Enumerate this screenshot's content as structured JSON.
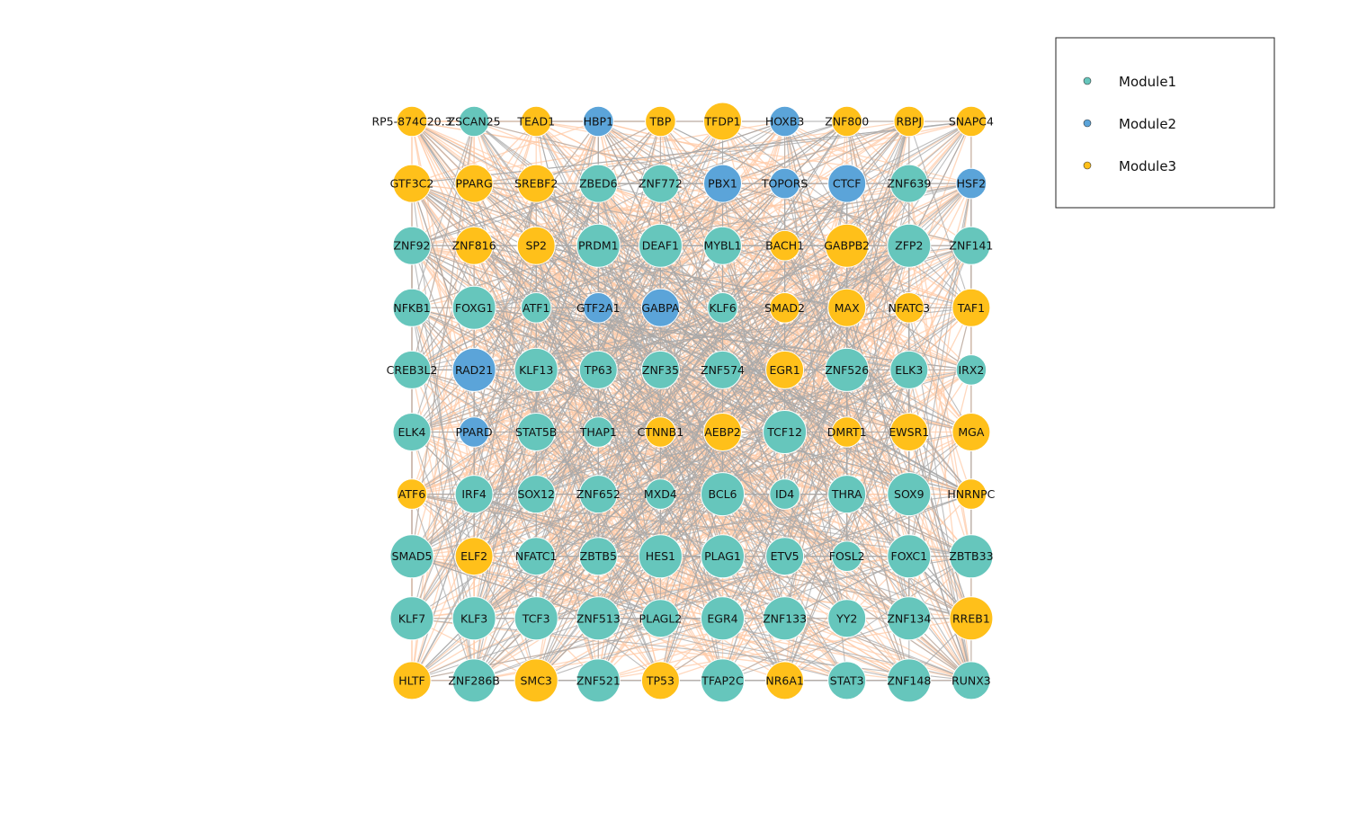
{
  "colors": {
    "Module1": "#66C6BC",
    "Module2": "#5BA4D9",
    "Module3": "#FFC01A",
    "edge_gray": "#A8A8A8",
    "edge_peach": "#FFCBA8",
    "node_stroke": "#ffffff",
    "legend_border": "#222222"
  },
  "legend": {
    "items": [
      {
        "label": "Module1",
        "module": "Module1"
      },
      {
        "label": "Module2",
        "module": "Module2"
      },
      {
        "label": "Module3",
        "module": "Module3"
      }
    ]
  },
  "network": {
    "rows": [
      [
        [
          "RP5-874C20.3",
          "Module3"
        ],
        [
          "ZSCAN25",
          "Module1"
        ],
        [
          "TEAD1",
          "Module3"
        ],
        [
          "HBP1",
          "Module2"
        ],
        [
          "TBP",
          "Module3"
        ],
        [
          "TFDP1",
          "Module3"
        ],
        [
          "HOXB3",
          "Module2"
        ],
        [
          "ZNF800",
          "Module3"
        ],
        [
          "RBPJ",
          "Module3"
        ],
        [
          "SNAPC4",
          "Module3"
        ]
      ],
      [
        [
          "GTF3C2",
          "Module3"
        ],
        [
          "PPARG",
          "Module3"
        ],
        [
          "SREBF2",
          "Module3"
        ],
        [
          "ZBED6",
          "Module1"
        ],
        [
          "ZNF772",
          "Module1"
        ],
        [
          "PBX1",
          "Module2"
        ],
        [
          "TOPORS",
          "Module2"
        ],
        [
          "CTCF",
          "Module2"
        ],
        [
          "ZNF639",
          "Module1"
        ],
        [
          "HSF2",
          "Module2"
        ]
      ],
      [
        [
          "ZNF92",
          "Module1"
        ],
        [
          "ZNF816",
          "Module3"
        ],
        [
          "SP2",
          "Module3"
        ],
        [
          "PRDM1",
          "Module1"
        ],
        [
          "DEAF1",
          "Module1"
        ],
        [
          "MYBL1",
          "Module1"
        ],
        [
          "BACH1",
          "Module3"
        ],
        [
          "GABPB2",
          "Module3"
        ],
        [
          "ZFP2",
          "Module1"
        ],
        [
          "ZNF141",
          "Module1"
        ]
      ],
      [
        [
          "NFKB1",
          "Module1"
        ],
        [
          "FOXG1",
          "Module1"
        ],
        [
          "ATF1",
          "Module1"
        ],
        [
          "GTF2A1",
          "Module2"
        ],
        [
          "GABPA",
          "Module2"
        ],
        [
          "KLF6",
          "Module1"
        ],
        [
          "SMAD2",
          "Module3"
        ],
        [
          "MAX",
          "Module3"
        ],
        [
          "NFATC3",
          "Module3"
        ],
        [
          "TAF1",
          "Module3"
        ]
      ],
      [
        [
          "CREB3L2",
          "Module1"
        ],
        [
          "RAD21",
          "Module2"
        ],
        [
          "KLF13",
          "Module1"
        ],
        [
          "TP63",
          "Module1"
        ],
        [
          "ZNF35",
          "Module1"
        ],
        [
          "ZNF574",
          "Module1"
        ],
        [
          "EGR1",
          "Module3"
        ],
        [
          "ZNF526",
          "Module1"
        ],
        [
          "ELK3",
          "Module1"
        ],
        [
          "IRX2",
          "Module1"
        ]
      ],
      [
        [
          "ELK4",
          "Module1"
        ],
        [
          "PPARD",
          "Module2"
        ],
        [
          "STAT5B",
          "Module1"
        ],
        [
          "THAP1",
          "Module1"
        ],
        [
          "CTNNB1",
          "Module3"
        ],
        [
          "AEBP2",
          "Module3"
        ],
        [
          "TCF12",
          "Module1"
        ],
        [
          "DMRT1",
          "Module3"
        ],
        [
          "EWSR1",
          "Module3"
        ],
        [
          "MGA",
          "Module3"
        ]
      ],
      [
        [
          "ATF6",
          "Module3"
        ],
        [
          "IRF4",
          "Module1"
        ],
        [
          "SOX12",
          "Module1"
        ],
        [
          "ZNF652",
          "Module1"
        ],
        [
          "MXD4",
          "Module1"
        ],
        [
          "BCL6",
          "Module1"
        ],
        [
          "ID4",
          "Module1"
        ],
        [
          "THRA",
          "Module1"
        ],
        [
          "SOX9",
          "Module1"
        ],
        [
          "HNRNPC",
          "Module3"
        ]
      ],
      [
        [
          "SMAD5",
          "Module1"
        ],
        [
          "ELF2",
          "Module3"
        ],
        [
          "NFATC1",
          "Module1"
        ],
        [
          "ZBTB5",
          "Module1"
        ],
        [
          "HES1",
          "Module1"
        ],
        [
          "PLAG1",
          "Module1"
        ],
        [
          "ETV5",
          "Module1"
        ],
        [
          "FOSL2",
          "Module1"
        ],
        [
          "FOXC1",
          "Module1"
        ],
        [
          "ZBTB33",
          "Module1"
        ]
      ],
      [
        [
          "KLF7",
          "Module1"
        ],
        [
          "KLF3",
          "Module1"
        ],
        [
          "TCF3",
          "Module1"
        ],
        [
          "ZNF513",
          "Module1"
        ],
        [
          "PLAGL2",
          "Module1"
        ],
        [
          "EGR4",
          "Module1"
        ],
        [
          "ZNF133",
          "Module1"
        ],
        [
          "YY2",
          "Module1"
        ],
        [
          "ZNF134",
          "Module1"
        ],
        [
          "RREB1",
          "Module3"
        ]
      ],
      [
        [
          "HLTF",
          "Module3"
        ],
        [
          "ZNF286B",
          "Module1"
        ],
        [
          "SMC3",
          "Module3"
        ],
        [
          "ZNF521",
          "Module1"
        ],
        [
          "TP53",
          "Module3"
        ],
        [
          "TFAP2C",
          "Module1"
        ],
        [
          "NR6A1",
          "Module3"
        ],
        [
          "STAT3",
          "Module1"
        ],
        [
          "ZNF148",
          "Module1"
        ],
        [
          "RUNX3",
          "Module1"
        ]
      ]
    ],
    "sizes": [
      [
        1.4,
        1.4,
        1.4,
        1.4,
        1.4,
        1.75,
        1.4,
        1.4,
        1.4,
        1.4
      ],
      [
        1.75,
        1.75,
        1.75,
        1.75,
        1.75,
        1.75,
        1.4,
        1.75,
        1.75,
        1.4
      ],
      [
        1.75,
        1.75,
        1.75,
        2.0,
        2.0,
        1.75,
        1.4,
        2.0,
        2.0,
        1.75
      ],
      [
        1.75,
        2.0,
        1.4,
        1.4,
        1.75,
        1.4,
        1.4,
        1.75,
        1.4,
        1.75
      ],
      [
        1.75,
        2.0,
        2.0,
        1.75,
        1.75,
        1.75,
        1.75,
        2.0,
        1.75,
        1.4
      ],
      [
        1.75,
        1.4,
        1.75,
        1.4,
        1.4,
        1.75,
        2.0,
        1.4,
        1.75,
        1.75
      ],
      [
        1.4,
        1.75,
        1.75,
        1.75,
        1.4,
        2.0,
        1.4,
        1.75,
        2.0,
        1.4
      ],
      [
        2.0,
        1.75,
        1.75,
        1.75,
        2.0,
        2.0,
        1.75,
        1.4,
        2.0,
        2.0
      ],
      [
        2.0,
        2.0,
        2.0,
        2.0,
        1.75,
        2.0,
        2.0,
        1.75,
        2.0,
        2.0
      ],
      [
        1.75,
        2.0,
        2.0,
        2.0,
        1.75,
        2.0,
        1.75,
        1.75,
        2.0,
        1.75
      ]
    ]
  }
}
